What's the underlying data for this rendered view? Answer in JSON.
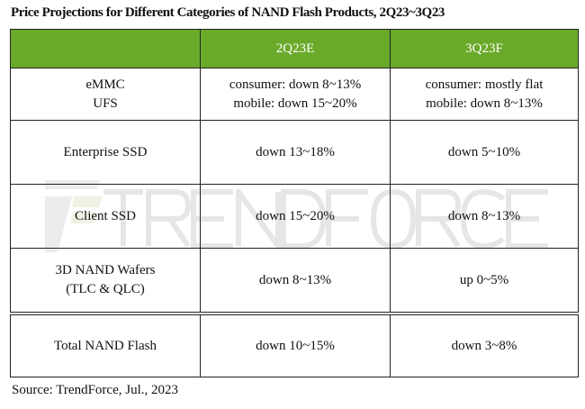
{
  "title": "Price Projections for Different Categories of NAND Flash Products, 2Q23~3Q23",
  "table": {
    "headers": [
      "",
      "2Q23E",
      "3Q23F"
    ],
    "rows": [
      {
        "category": [
          "eMMC",
          "UFS"
        ],
        "q2": [
          "consumer: down 8~13%",
          "mobile: down 15~20%"
        ],
        "q3": [
          "consumer: mostly flat",
          "mobile: down 8~13%"
        ]
      },
      {
        "category": [
          "Enterprise SSD"
        ],
        "q2": [
          "down 13~18%"
        ],
        "q3": [
          "down 5~10%"
        ]
      },
      {
        "category": [
          "Client SSD"
        ],
        "q2": [
          "down 15~20%"
        ],
        "q3": [
          "down 8~13%"
        ]
      },
      {
        "category": [
          "3D NAND Wafers",
          "(TLC & QLC)"
        ],
        "q2": [
          "down 8~13%"
        ],
        "q3": [
          "up 0~5%"
        ]
      },
      {
        "category": [
          "Total NAND Flash"
        ],
        "q2": [
          "down 10~15%"
        ],
        "q3": [
          "down 3~8%"
        ]
      }
    ]
  },
  "source": "Source: TrendForce, Jul., 2023",
  "watermark": "TRENDFORCE",
  "colors": {
    "header_bg": "#6aaa2a",
    "header_text": "#ffffff"
  }
}
